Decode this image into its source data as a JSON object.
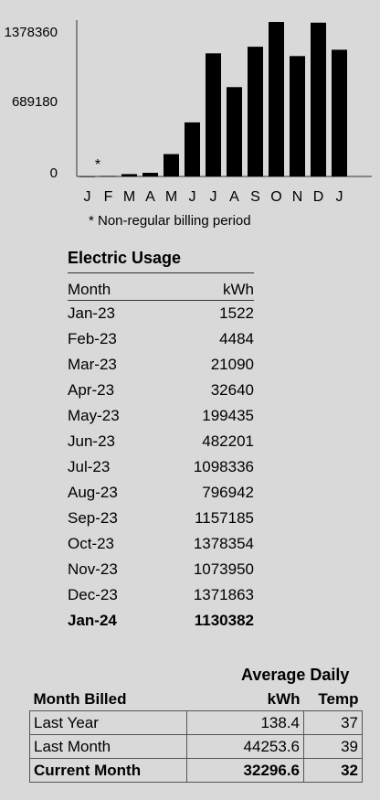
{
  "chart_data": {
    "type": "bar",
    "categories": [
      "J",
      "F",
      "M",
      "A",
      "M",
      "J",
      "J",
      "A",
      "S",
      "O",
      "N",
      "D",
      "J"
    ],
    "values": [
      1522,
      4484,
      21090,
      32640,
      199435,
      482201,
      1098336,
      796942,
      1157185,
      1378354,
      1073950,
      1371863,
      1130382
    ],
    "yticks": [
      "1378360",
      "689180",
      "0"
    ],
    "ylim": [
      0,
      1378360
    ],
    "annotation": "*",
    "footnote": "* Non-regular billing period",
    "bar_color": "#000000"
  },
  "usage": {
    "title": "Electric Usage",
    "col_month": "Month",
    "col_kwh": "kWh",
    "rows": [
      {
        "month": "Jan-23",
        "kwh": "1522"
      },
      {
        "month": "Feb-23",
        "kwh": "4484"
      },
      {
        "month": "Mar-23",
        "kwh": "21090"
      },
      {
        "month": "Apr-23",
        "kwh": "32640"
      },
      {
        "month": "May-23",
        "kwh": "199435"
      },
      {
        "month": "Jun-23",
        "kwh": "482201"
      },
      {
        "month": "Jul-23",
        "kwh": "1098336"
      },
      {
        "month": "Aug-23",
        "kwh": "796942"
      },
      {
        "month": "Sep-23",
        "kwh": "1157185"
      },
      {
        "month": "Oct-23",
        "kwh": "1378354"
      },
      {
        "month": "Nov-23",
        "kwh": "1073950"
      },
      {
        "month": "Dec-23",
        "kwh": "1371863"
      },
      {
        "month": "Jan-24",
        "kwh": "1130382"
      }
    ]
  },
  "summary": {
    "avg_daily_label": "Average Daily",
    "col_month_billed": "Month Billed",
    "col_kwh": "kWh",
    "col_temp": "Temp",
    "rows": [
      {
        "label": "Last Year",
        "kwh": "138.4",
        "temp": "37"
      },
      {
        "label": "Last Month",
        "kwh": "44253.6",
        "temp": "39"
      },
      {
        "label": "Current Month",
        "kwh": "32296.6",
        "temp": "32"
      }
    ]
  }
}
